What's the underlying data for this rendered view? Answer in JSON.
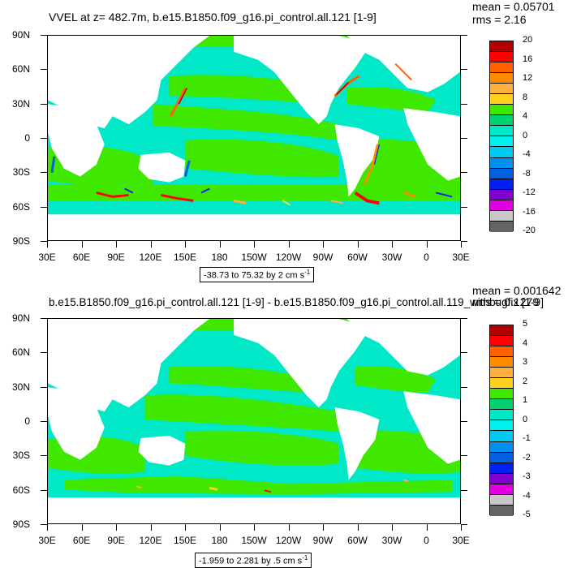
{
  "chart_data": [
    {
      "type": "heatmap",
      "title": "VVEL at z= 482.7m, b.e15.B1850.f09_g16.pi_control.all.121 [1-9]",
      "stats": {
        "mean": "mean = 0.05701",
        "rms": "rms = 2.16"
      },
      "range_label": "-38.73 to 75.32 by 2 cm s",
      "range_unit_sup": "-1",
      "y_ticks": [
        "90N",
        "60N",
        "30N",
        "0",
        "30S",
        "60S",
        "90S"
      ],
      "x_ticks": [
        "30E",
        "60E",
        "90E",
        "120E",
        "150E",
        "180",
        "150W",
        "120W",
        "90W",
        "60W",
        "30W",
        "0",
        "30E"
      ],
      "colorbar": {
        "labels": [
          "20",
          "16",
          "12",
          "8",
          "4",
          "0",
          "-4",
          "-8",
          "-12",
          "-16",
          "-20"
        ],
        "colors": [
          "#b00000",
          "#ff0000",
          "#ff6000",
          "#ff8c00",
          "#ffb040",
          "#ffd020",
          "#40e800",
          "#00d070",
          "#00e8c8",
          "#00f0f0",
          "#00c8f0",
          "#0090f0",
          "#0060e0",
          "#0020f0",
          "#8000d0",
          "#e000e0",
          "#c8c8c8",
          "#646464"
        ]
      },
      "background_color": "#00e8c8",
      "land_color": "#ffffff"
    },
    {
      "type": "heatmap",
      "title": "b.e15.B1850.f09_g16.pi_control.all.121 [1-9] - b.e15.B1850.f09_g16.pi_control.all.119_withbugfix [1-9]",
      "stats": {
        "mean": "mean = 0.001642",
        "rms": "rms = 0.1279"
      },
      "range_label": "-1.959 to 2.281 by .5 cm s",
      "range_unit_sup": "-1",
      "y_ticks": [
        "90N",
        "60N",
        "30N",
        "0",
        "30S",
        "60S",
        "90S"
      ],
      "x_ticks": [
        "30E",
        "60E",
        "90E",
        "120E",
        "150E",
        "180",
        "150W",
        "120W",
        "90W",
        "60W",
        "30W",
        "0",
        "30E"
      ],
      "colorbar": {
        "labels": [
          "5",
          "4",
          "3",
          "2",
          "1",
          "0",
          "-1",
          "-2",
          "-3",
          "-4",
          "-5"
        ],
        "colors": [
          "#b00000",
          "#ff0000",
          "#ff6000",
          "#ff8c00",
          "#ffb040",
          "#ffd020",
          "#40e800",
          "#00d070",
          "#00e8c8",
          "#00f0f0",
          "#00c8f0",
          "#0090f0",
          "#0060e0",
          "#0020f0",
          "#8000d0",
          "#e000e0",
          "#c8c8c8",
          "#646464"
        ]
      },
      "background_color": "#00e8c8",
      "land_color": "#ffffff"
    }
  ]
}
